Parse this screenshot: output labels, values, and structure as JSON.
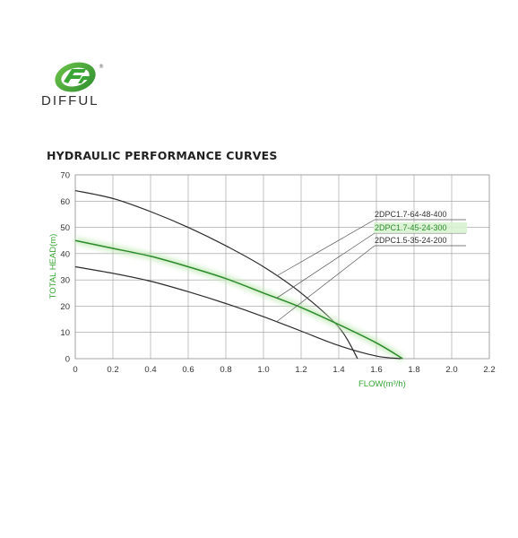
{
  "brand": {
    "name": "DIFFUL",
    "trademark": "®",
    "logo_icon": "difful-logo",
    "green": "#3aa635"
  },
  "chart_data": {
    "type": "line",
    "title": "HYDRAULIC PERFORMANCE CURVES",
    "xlabel": "FLOW(m³/h)",
    "ylabel": "TOTAL HEAD(m)",
    "xlim": [
      0,
      2.2
    ],
    "ylim": [
      0,
      70
    ],
    "x_ticks": [
      "0",
      "0.2",
      "0.4",
      "0.6",
      "0.8",
      "1.0",
      "1.2",
      "1.4",
      "1.6",
      "1.8",
      "2.0",
      "2.2"
    ],
    "y_ticks": [
      "0",
      "10",
      "20",
      "30",
      "40",
      "50",
      "60",
      "70"
    ],
    "grid": true,
    "series": [
      {
        "name": "2DPC1.7-64-48-400",
        "color": "#2b2b2b",
        "highlight": false,
        "x": [
          0,
          0.2,
          0.4,
          0.6,
          0.8,
          1.0,
          1.2,
          1.4,
          1.5
        ],
        "y": [
          64,
          61,
          56,
          50,
          43,
          35,
          25,
          12,
          0
        ]
      },
      {
        "name": "2DPC1.7-45-24-300",
        "color": "#2a8a2a",
        "highlight": true,
        "x": [
          0,
          0.2,
          0.4,
          0.6,
          0.8,
          1.0,
          1.2,
          1.4,
          1.6,
          1.74
        ],
        "y": [
          45,
          42,
          39,
          35,
          30.5,
          25,
          19.5,
          13,
          6,
          0
        ]
      },
      {
        "name": "2DPC1.5-35-24-200",
        "color": "#2b2b2b",
        "highlight": false,
        "x": [
          0,
          0.2,
          0.4,
          0.6,
          0.8,
          1.0,
          1.2,
          1.4,
          1.6,
          1.73
        ],
        "y": [
          35,
          32.5,
          29.5,
          25.5,
          21,
          16,
          10.5,
          5,
          1,
          0
        ]
      }
    ],
    "legend_placement": "right"
  }
}
